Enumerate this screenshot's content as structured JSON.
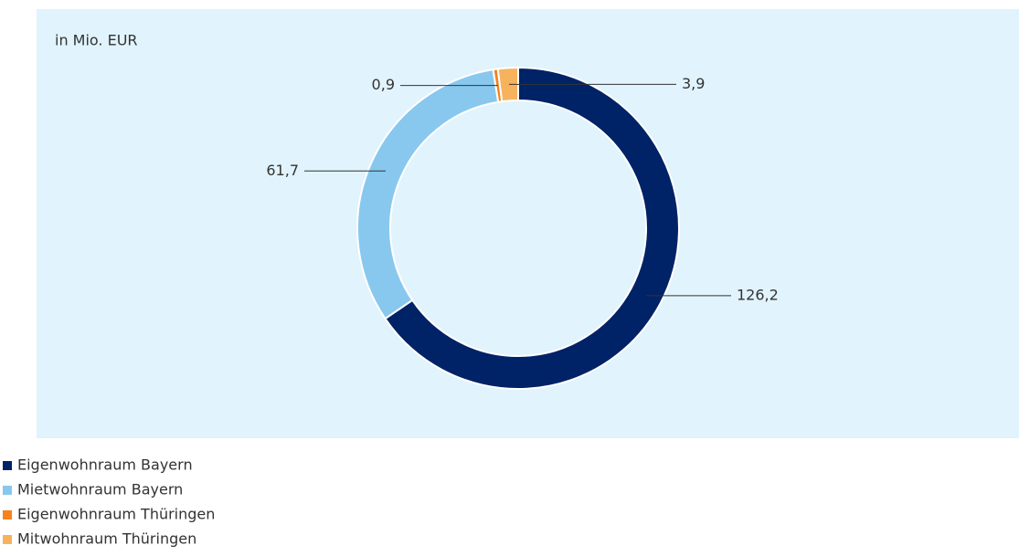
{
  "chart_data": {
    "type": "donut",
    "subtitle": "in Mio. EUR",
    "categories": [
      "Eigenwohnraum Bayern",
      "Mietwohnraum Bayern",
      "Eigenwohnraum Thüringen",
      "Mitwohnraum Thüringen"
    ],
    "values": [
      126.2,
      61.7,
      0.9,
      3.9
    ],
    "value_labels": [
      "126,2",
      "61,7",
      "0,9",
      "3,9"
    ],
    "colors": [
      "#002266",
      "#88c8ef",
      "#f5821f",
      "#f7b25e"
    ],
    "legend": "bottom-left"
  }
}
